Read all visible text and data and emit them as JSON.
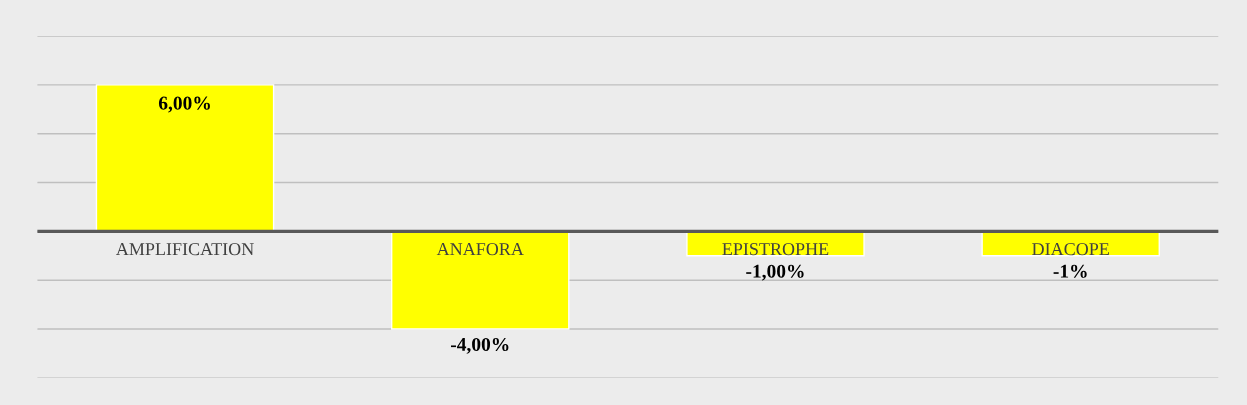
{
  "chart_data": {
    "type": "bar",
    "categories": [
      "AMPLIFICATION",
      "ANAFORA",
      "EPISTROPHE",
      "DIACOPE"
    ],
    "values": [
      6,
      -4,
      -1,
      -1
    ],
    "value_labels": [
      "6,00%",
      "-4,00%",
      "-1,00%",
      "-1%"
    ],
    "color": "#ffff00",
    "ylim": [
      -6,
      8
    ],
    "yticks": [
      {
        "value": -6,
        "label": null
      },
      {
        "value": -4,
        "label": null
      },
      {
        "value": -2,
        "label": null
      },
      {
        "value": 0,
        "label": null
      },
      {
        "value": 2,
        "label": null
      },
      {
        "value": 4,
        "label": null
      },
      {
        "value": 6,
        "label": null
      },
      {
        "value": 8,
        "label": null
      }
    ],
    "grid": "y",
    "legend": false
  }
}
